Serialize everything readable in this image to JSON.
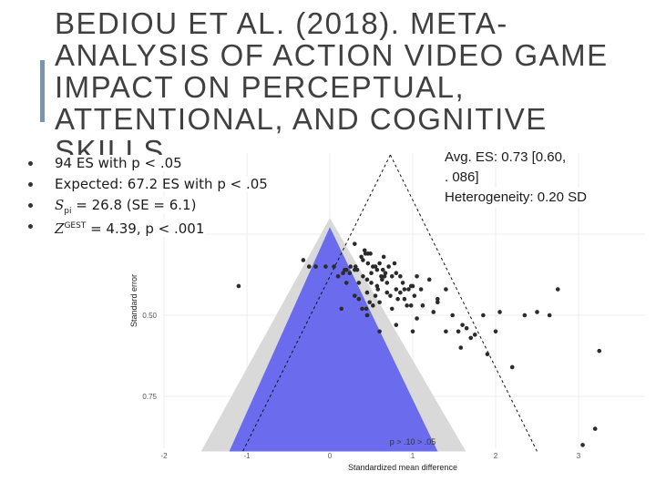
{
  "slide": {
    "title": "BEDIOU ET AL. (2018). META-ANALYSIS OF ACTION VIDEO GAME IMPACT ON PERCEPTUAL, ATTENTIONAL, AND COGNITIVE SKILLS",
    "accent_color": "#7a95a8"
  },
  "bullets": [
    {
      "text": "94 ES with p < .05"
    },
    {
      "text": "Expected: 67.2 ES with p < .05"
    },
    {
      "var": "S",
      "sub": "pi",
      "text": " = 26.8 (SE = 6.1)"
    },
    {
      "var": "Z",
      "sup": "GEST",
      "text": " = 4.39, p < .001"
    }
  ],
  "stats": {
    "line1": "Avg. ES: 0.73 [0.60,",
    "line2": ". 086]",
    "line3": "Heterogeneity: 0.20 SD"
  },
  "chart_data": {
    "type": "scatter",
    "subtype": "funnel plot",
    "xlabel": "Standardized mean difference",
    "ylabel": "Standard error",
    "xlim": [
      -2,
      3.5
    ],
    "ylim": [
      0.92,
      0.2
    ],
    "x_ticks": [
      "-2",
      "-1",
      "0",
      "1",
      "2",
      "3"
    ],
    "y_ticks": [
      "0.50",
      "0.75"
    ],
    "grid": true,
    "colors": {
      "significance_region": "#6b6bee",
      "outer_region": "#d9d9d9",
      "points": "#2b2b2b",
      "funnel_line": "#111111"
    },
    "funnel_center": 0.73,
    "annotation": "p > .10   > .05",
    "points": [
      [
        -0.17,
        0.35
      ],
      [
        0.2,
        0.36
      ],
      [
        0.55,
        0.35
      ],
      [
        -1.1,
        0.41
      ],
      [
        -0.32,
        0.33
      ],
      [
        0.3,
        0.28
      ],
      [
        0.42,
        0.3
      ],
      [
        0.46,
        0.34
      ],
      [
        0.2,
        0.4
      ],
      [
        0.62,
        0.38
      ],
      [
        0.38,
        0.32
      ],
      [
        0.4,
        0.33
      ],
      [
        0.43,
        0.31
      ],
      [
        0.46,
        0.31
      ],
      [
        0.49,
        0.31
      ],
      [
        0.31,
        0.35
      ],
      [
        0.33,
        0.36
      ],
      [
        0.5,
        0.37
      ],
      [
        0.58,
        0.42
      ],
      [
        0.14,
        0.48
      ],
      [
        -0.25,
        0.35
      ],
      [
        -0.05,
        0.35
      ],
      [
        0.05,
        0.35
      ],
      [
        0.25,
        0.35
      ],
      [
        0.3,
        0.36
      ],
      [
        0.4,
        0.38
      ],
      [
        0.45,
        0.39
      ],
      [
        0.35,
        0.4
      ],
      [
        0.52,
        0.35
      ],
      [
        0.57,
        0.36
      ],
      [
        0.5,
        0.4
      ],
      [
        0.64,
        0.36
      ],
      [
        0.67,
        0.37
      ],
      [
        0.66,
        0.38
      ],
      [
        0.69,
        0.4
      ],
      [
        0.69,
        0.43
      ],
      [
        0.73,
        0.44
      ],
      [
        0.75,
        0.38
      ],
      [
        0.8,
        0.37
      ],
      [
        0.85,
        0.38
      ],
      [
        0.88,
        0.4
      ],
      [
        0.9,
        0.42
      ],
      [
        0.95,
        0.42
      ],
      [
        0.98,
        0.41
      ],
      [
        1.02,
        0.44
      ],
      [
        0.98,
        0.47
      ],
      [
        0.9,
        0.45
      ],
      [
        0.82,
        0.45
      ],
      [
        0.75,
        0.48
      ],
      [
        0.6,
        0.46
      ],
      [
        0.55,
        0.44
      ],
      [
        0.45,
        0.43
      ],
      [
        0.48,
        0.46
      ],
      [
        0.35,
        0.45
      ],
      [
        0.3,
        0.44
      ],
      [
        0.39,
        0.48
      ],
      [
        0.45,
        0.5
      ],
      [
        0.52,
        0.47
      ],
      [
        0.18,
        0.36
      ],
      [
        0.24,
        0.37
      ],
      [
        0.16,
        0.37
      ],
      [
        0.1,
        0.38
      ],
      [
        0.57,
        0.41
      ],
      [
        0.71,
        0.35
      ],
      [
        0.6,
        0.34
      ],
      [
        0.8,
        0.42
      ],
      [
        0.63,
        0.39
      ],
      [
        0.44,
        0.48
      ],
      [
        0.85,
        0.43
      ],
      [
        0.93,
        0.47
      ],
      [
        1.1,
        0.42
      ],
      [
        1.0,
        0.41
      ],
      [
        0.65,
        0.32
      ],
      [
        0.78,
        0.34
      ],
      [
        1.05,
        0.38
      ],
      [
        1.2,
        0.39
      ],
      [
        1.3,
        0.45
      ],
      [
        1.4,
        0.42
      ],
      [
        1.25,
        0.49
      ],
      [
        1.12,
        0.47
      ],
      [
        1.3,
        0.46
      ],
      [
        1.05,
        0.51
      ],
      [
        1.0,
        0.55
      ],
      [
        1.48,
        0.5
      ],
      [
        1.55,
        0.55
      ],
      [
        1.6,
        0.53
      ],
      [
        1.65,
        0.54
      ],
      [
        1.7,
        0.57
      ],
      [
        1.58,
        0.6
      ],
      [
        1.75,
        0.56
      ],
      [
        1.85,
        0.5
      ],
      [
        2.0,
        0.55
      ],
      [
        2.05,
        0.49
      ],
      [
        2.35,
        0.5
      ],
      [
        2.5,
        0.49
      ],
      [
        2.65,
        0.5
      ],
      [
        2.2,
        0.66
      ],
      [
        0.8,
        0.53
      ],
      [
        0.6,
        0.55
      ],
      [
        2.75,
        0.42
      ],
      [
        1.4,
        0.55
      ],
      [
        1.9,
        0.62
      ],
      [
        3.25,
        0.61
      ],
      [
        3.2,
        0.85
      ],
      [
        3.05,
        0.9
      ]
    ]
  }
}
